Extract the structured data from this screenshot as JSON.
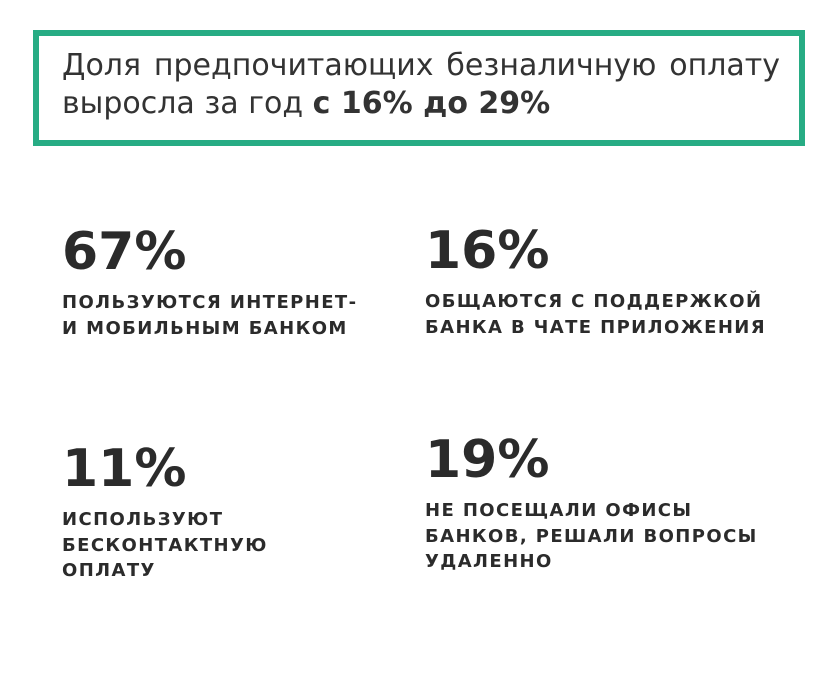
{
  "header": {
    "lines": [
      "Доля предпочитающих безналичную оплату",
      "выросла за год"
    ],
    "highlight": "с 16% до 29%"
  },
  "stats": [
    {
      "value": "67%",
      "label_lines": [
        "ПОЛЬЗУЮТСЯ ИНТЕРНЕТ-",
        "И МОБИЛЬНЫМ БАНКОМ"
      ]
    },
    {
      "value": "16%",
      "label_lines": [
        "ОБЩАЮТСЯ С ПОДДЕРЖКОЙ",
        "БАНКА В ЧАТЕ ПРИЛОЖЕНИЯ"
      ]
    },
    {
      "value": "11%",
      "label_lines": [
        "ИСПОЛЬЗУЮТ",
        "БЕСКОНТАКТНУЮ",
        "ОПЛАТУ"
      ]
    },
    {
      "value": "19%",
      "label_lines": [
        "НЕ ПОСЕЩАЛИ ОФИСЫ",
        "БАНКОВ, РЕШАЛИ ВОПРОСЫ",
        "УДАЛЕННО"
      ]
    }
  ]
}
